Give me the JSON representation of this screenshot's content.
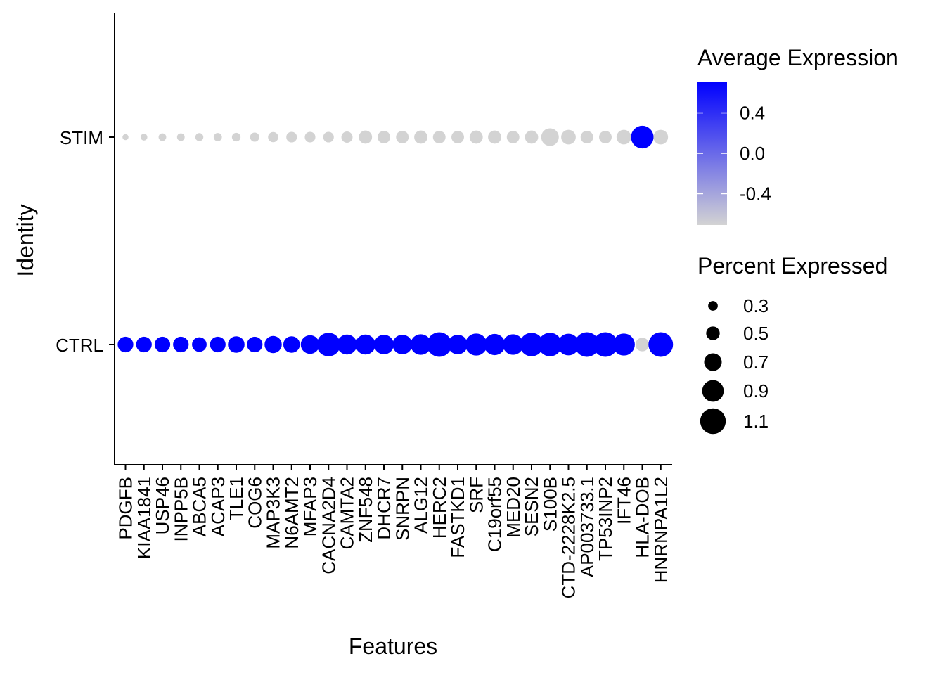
{
  "chart_data": {
    "type": "scatter",
    "subtype": "dot-plot",
    "xlabel": "Features",
    "ylabel": "Identity",
    "categories": [
      "PDGFB",
      "KIAA1841",
      "USP46",
      "INPP5B",
      "ABCA5",
      "ACAP3",
      "TLE1",
      "COG6",
      "MAP3K3",
      "N6AMT2",
      "MFAP3",
      "CACNA2D4",
      "CAMTA2",
      "ZNF548",
      "DHCR7",
      "SNRPN",
      "ALG12",
      "HERC2",
      "FASTKD1",
      "SRF",
      "C19orf55",
      "MED20",
      "SESN2",
      "S100B",
      "CTD-2228K2.5",
      "AP003733.1",
      "TP53INP2",
      "IFT46",
      "HLA-DOB",
      "HNRNPA1L2"
    ],
    "identities": [
      "STIM",
      "CTRL"
    ],
    "series": [
      {
        "identity": "STIM",
        "avg_expression": [
          -0.71,
          -0.71,
          -0.71,
          -0.71,
          -0.71,
          -0.71,
          -0.71,
          -0.71,
          -0.71,
          -0.71,
          -0.71,
          -0.71,
          -0.71,
          -0.71,
          -0.71,
          -0.71,
          -0.71,
          -0.71,
          -0.71,
          -0.71,
          -0.71,
          -0.71,
          -0.71,
          -0.71,
          -0.71,
          -0.71,
          -0.71,
          -0.71,
          0.71,
          -0.71
        ],
        "pct_expressed": [
          0.12,
          0.16,
          0.2,
          0.2,
          0.22,
          0.23,
          0.25,
          0.28,
          0.33,
          0.35,
          0.35,
          0.35,
          0.38,
          0.48,
          0.45,
          0.45,
          0.48,
          0.45,
          0.45,
          0.48,
          0.48,
          0.45,
          0.48,
          0.7,
          0.55,
          0.45,
          0.45,
          0.55,
          0.95,
          0.55
        ]
      },
      {
        "identity": "CTRL",
        "avg_expression": [
          0.71,
          0.71,
          0.71,
          0.71,
          0.71,
          0.71,
          0.71,
          0.71,
          0.71,
          0.71,
          0.71,
          0.71,
          0.71,
          0.71,
          0.71,
          0.71,
          0.71,
          0.71,
          0.71,
          0.71,
          0.71,
          0.71,
          0.71,
          0.71,
          0.71,
          0.71,
          0.71,
          0.71,
          -0.71,
          0.71
        ],
        "pct_expressed": [
          0.6,
          0.6,
          0.6,
          0.6,
          0.55,
          0.6,
          0.65,
          0.6,
          0.68,
          0.65,
          0.75,
          1.0,
          0.82,
          0.82,
          0.8,
          0.8,
          0.85,
          1.05,
          0.8,
          0.92,
          0.88,
          0.85,
          1.0,
          1.0,
          0.9,
          1.05,
          1.05,
          0.92,
          0.5,
          1.05
        ]
      }
    ],
    "color_legend": {
      "title": "Average Expression",
      "ticks": [
        "0.4",
        "0.0",
        "-0.4"
      ],
      "tick_values": [
        0.4,
        0.0,
        -0.4
      ],
      "range": [
        -0.71,
        0.71
      ],
      "low_color": "#d3d3d3",
      "high_color": "#0000ff"
    },
    "size_legend": {
      "title": "Percent Expressed",
      "entries": [
        "0.3",
        "0.5",
        "0.7",
        "0.9",
        "1.1"
      ],
      "entry_values": [
        0.3,
        0.5,
        0.7,
        0.9,
        1.1
      ]
    },
    "grid": false,
    "legend_position": "right"
  }
}
